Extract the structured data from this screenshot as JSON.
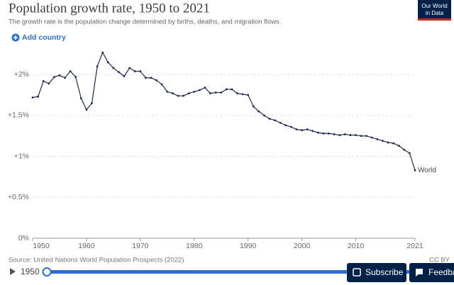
{
  "chart_data": {
    "type": "line",
    "title": "Population growth rate, 1950 to 2021",
    "subtitle": "The growth rate is the population change determined by births, deaths, and migration flows.",
    "source": "Source: United Nations World Population Prospects (2022)",
    "license": "CC BY",
    "x": [
      1950,
      1951,
      1952,
      1953,
      1954,
      1955,
      1956,
      1957,
      1958,
      1959,
      1960,
      1961,
      1962,
      1963,
      1964,
      1965,
      1966,
      1967,
      1968,
      1969,
      1970,
      1971,
      1972,
      1973,
      1974,
      1975,
      1976,
      1977,
      1978,
      1979,
      1980,
      1981,
      1982,
      1983,
      1984,
      1985,
      1986,
      1987,
      1988,
      1989,
      1990,
      1991,
      1992,
      1993,
      1994,
      1995,
      1996,
      1997,
      1998,
      1999,
      2000,
      2001,
      2002,
      2003,
      2004,
      2005,
      2006,
      2007,
      2008,
      2009,
      2010,
      2011,
      2012,
      2013,
      2014,
      2015,
      2016,
      2017,
      2018,
      2019,
      2020,
      2021
    ],
    "series": [
      {
        "name": "World",
        "color": "#1d2b4f",
        "values": [
          1.72,
          1.73,
          1.92,
          1.89,
          1.97,
          1.99,
          1.96,
          2.04,
          1.97,
          1.71,
          1.57,
          1.65,
          2.1,
          2.27,
          2.15,
          2.08,
          2.03,
          1.98,
          2.08,
          2.04,
          2.04,
          1.96,
          1.96,
          1.93,
          1.88,
          1.79,
          1.77,
          1.74,
          1.74,
          1.77,
          1.79,
          1.81,
          1.84,
          1.77,
          1.78,
          1.78,
          1.82,
          1.82,
          1.77,
          1.76,
          1.75,
          1.61,
          1.55,
          1.5,
          1.46,
          1.44,
          1.41,
          1.38,
          1.36,
          1.33,
          1.32,
          1.33,
          1.31,
          1.29,
          1.28,
          1.28,
          1.27,
          1.26,
          1.27,
          1.26,
          1.26,
          1.25,
          1.25,
          1.23,
          1.21,
          1.19,
          1.17,
          1.16,
          1.13,
          1.08,
          1.04,
          0.83
        ]
      }
    ],
    "xlim": [
      1950,
      2021
    ],
    "xticks": [
      1950,
      1960,
      1970,
      1980,
      1990,
      2000,
      2010,
      2021
    ],
    "ylim": [
      0,
      2.27
    ],
    "yticks": [
      {
        "value": 0,
        "label": "0%"
      },
      {
        "value": 0.5,
        "label": "+0.5%"
      },
      {
        "value": 1,
        "label": "+1%"
      },
      {
        "value": 1.5,
        "label": "+1.5%"
      },
      {
        "value": 2,
        "label": "+2%"
      }
    ],
    "grid": true
  },
  "logo": {
    "line1": "Our World",
    "line2": "in Data"
  },
  "controls": {
    "add_country": "Add country",
    "timeline_start": "1950",
    "subscribe": "Subscribe",
    "feedback": "Feedback"
  }
}
